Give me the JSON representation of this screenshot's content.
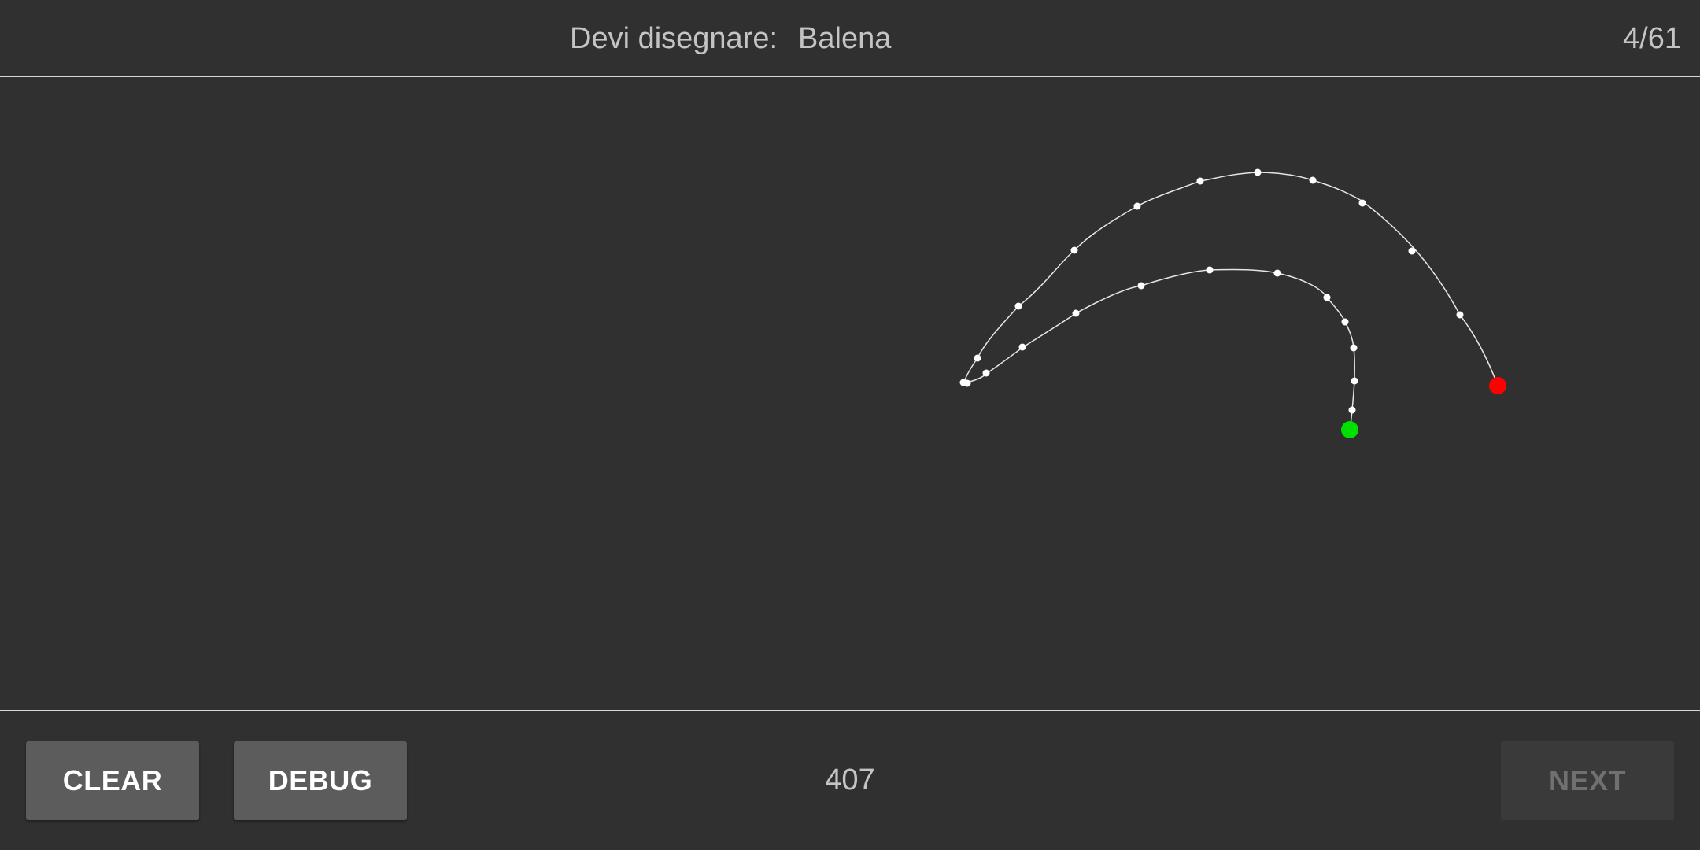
{
  "header": {
    "prompt_label": "Devi disegnare:",
    "target_word": "Balena",
    "progress": "4/61"
  },
  "footer": {
    "clear_label": "CLEAR",
    "debug_label": "DEBUG",
    "counter": "407",
    "next_label": "NEXT",
    "next_enabled": false
  },
  "colors": {
    "background": "#303030",
    "stroke": "#e6e6e6",
    "point": "#ffffff",
    "start_marker": "#00e000",
    "end_marker": "#ff0000",
    "button": "#5c5c5c",
    "button_disabled": "#3a3a3a"
  },
  "drawing": {
    "stroke_count": 1,
    "start_marker": "green",
    "end_marker": "red"
  }
}
